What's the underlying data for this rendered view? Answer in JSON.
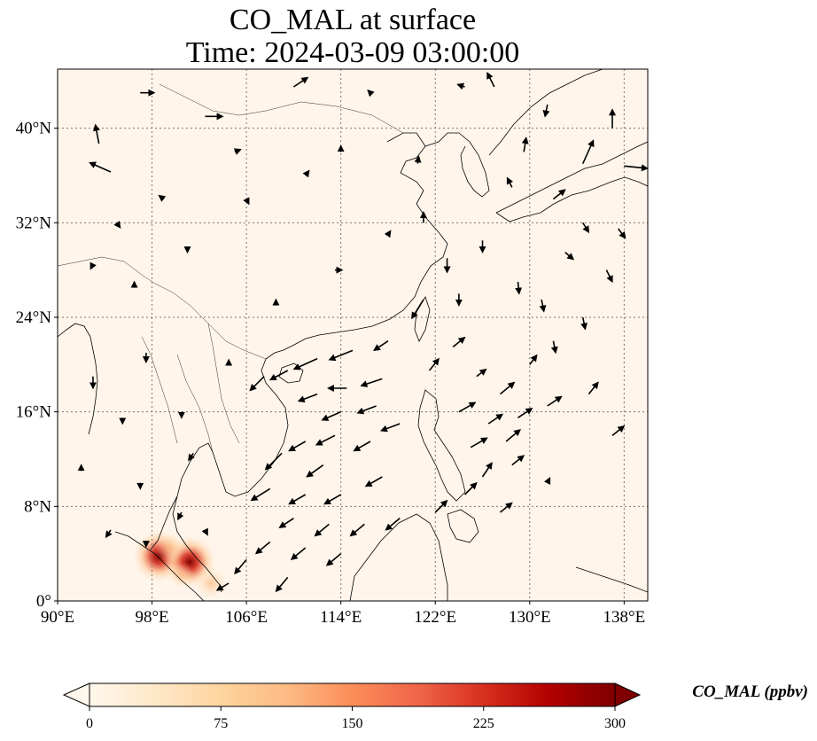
{
  "map": {
    "title_line1": "CO_MAL at surface",
    "title_line2": "Time: 2024-03-09 03:00:00",
    "lon_range": [
      90,
      140
    ],
    "lat_range": [
      0,
      45
    ],
    "lon_ticks": [
      {
        "value": 90,
        "label": "90°E"
      },
      {
        "value": 98,
        "label": "98°E"
      },
      {
        "value": 106,
        "label": "106°E"
      },
      {
        "value": 114,
        "label": "114°E"
      },
      {
        "value": 122,
        "label": "122°E"
      },
      {
        "value": 130,
        "label": "130°E"
      },
      {
        "value": 138,
        "label": "138°E"
      }
    ],
    "lat_ticks": [
      {
        "value": 0,
        "label": "0°"
      },
      {
        "value": 8,
        "label": "8°N"
      },
      {
        "value": 16,
        "label": "16°N"
      },
      {
        "value": 24,
        "label": "24°N"
      },
      {
        "value": 32,
        "label": "32°N"
      },
      {
        "value": 40,
        "label": "40°N"
      }
    ],
    "gridlines": true,
    "background_color": "#fff5eb",
    "hotspots": [
      {
        "lon": 98.6,
        "lat": 3.8,
        "value": 300
      },
      {
        "lon": 101.2,
        "lat": 3.3,
        "value": 300
      },
      {
        "lon": 99.5,
        "lat": 4.5,
        "value": 120
      },
      {
        "lon": 103.0,
        "lat": 1.5,
        "value": 140
      },
      {
        "lon": 100.5,
        "lat": 2.2,
        "value": 80
      }
    ]
  },
  "colorbar": {
    "label": "CO_MAL (ppbv)",
    "min": 0,
    "max": 300,
    "extend": "both",
    "colormap": "OrRd",
    "colors": [
      "#fff7ec",
      "#fee8c8",
      "#fdd49e",
      "#fdbb84",
      "#fc8d59",
      "#ef6548",
      "#d7301f",
      "#b30000",
      "#7f0000"
    ],
    "ticks": [
      {
        "value": 0,
        "label": "0"
      },
      {
        "value": 75,
        "label": "75"
      },
      {
        "value": 150,
        "label": "150"
      },
      {
        "value": 225,
        "label": "225"
      },
      {
        "value": 300,
        "label": "300"
      }
    ]
  },
  "wind_vectors": [
    {
      "lon": 93.5,
      "lat": 38.7,
      "u": -0.3,
      "v": 1.6
    },
    {
      "lon": 94.5,
      "lat": 36.3,
      "u": -1.8,
      "v": 0.8
    },
    {
      "lon": 97.0,
      "lat": 43.0,
      "u": 1.2,
      "v": 0.0
    },
    {
      "lon": 102.5,
      "lat": 41.0,
      "u": 1.5,
      "v": 0.0
    },
    {
      "lon": 105.0,
      "lat": 38.0,
      "u": 0.5,
      "v": 0.2
    },
    {
      "lon": 110.0,
      "lat": 43.5,
      "u": 1.2,
      "v": 0.8
    },
    {
      "lon": 116.5,
      "lat": 43.0,
      "u": -0.2,
      "v": 0.2
    },
    {
      "lon": 120.5,
      "lat": 37.0,
      "u": 0.1,
      "v": 0.6
    },
    {
      "lon": 124.5,
      "lat": 43.5,
      "u": -0.6,
      "v": 0.2
    },
    {
      "lon": 127.0,
      "lat": 43.5,
      "u": -0.6,
      "v": 1.2
    },
    {
      "lon": 131.5,
      "lat": 42.0,
      "u": -0.2,
      "v": -1.0
    },
    {
      "lon": 137.0,
      "lat": 40.0,
      "u": 0.0,
      "v": 1.6
    },
    {
      "lon": 134.5,
      "lat": 37.0,
      "u": 0.9,
      "v": 2.0
    },
    {
      "lon": 138.0,
      "lat": 36.8,
      "u": 2.0,
      "v": -0.2
    },
    {
      "lon": 129.5,
      "lat": 38.0,
      "u": 0.2,
      "v": 1.2
    },
    {
      "lon": 128.5,
      "lat": 35.0,
      "u": -0.4,
      "v": 0.8
    },
    {
      "lon": 132.0,
      "lat": 34.0,
      "u": 1.0,
      "v": 0.8
    },
    {
      "lon": 134.5,
      "lat": 32.0,
      "u": 0.5,
      "v": -0.8
    },
    {
      "lon": 137.5,
      "lat": 31.5,
      "u": 0.6,
      "v": -0.8
    },
    {
      "lon": 133.0,
      "lat": 29.5,
      "u": 0.7,
      "v": -0.6
    },
    {
      "lon": 136.5,
      "lat": 28.0,
      "u": 0.5,
      "v": -1.0
    },
    {
      "lon": 126.0,
      "lat": 30.5,
      "u": 0.0,
      "v": -1.0
    },
    {
      "lon": 129.0,
      "lat": 27.0,
      "u": 0.1,
      "v": -1.0
    },
    {
      "lon": 131.0,
      "lat": 25.5,
      "u": 0.2,
      "v": -1.0
    },
    {
      "lon": 134.5,
      "lat": 24.0,
      "u": 0.2,
      "v": -1.0
    },
    {
      "lon": 132.0,
      "lat": 22.0,
      "u": 0.2,
      "v": -1.0
    },
    {
      "lon": 118.0,
      "lat": 31.0,
      "u": 0.2,
      "v": 0.3
    },
    {
      "lon": 113.5,
      "lat": 28.0,
      "u": 0.6,
      "v": 0.0
    },
    {
      "lon": 108.5,
      "lat": 25.0,
      "u": 0.0,
      "v": 0.5
    },
    {
      "lon": 101.0,
      "lat": 30.0,
      "u": 0.0,
      "v": -0.5
    },
    {
      "lon": 96.5,
      "lat": 26.5,
      "u": 0.0,
      "v": 0.5
    },
    {
      "lon": 93.0,
      "lat": 28.5,
      "u": -0.2,
      "v": -0.4
    },
    {
      "lon": 95.0,
      "lat": 32.0,
      "u": 0.3,
      "v": -0.4
    },
    {
      "lon": 99.0,
      "lat": 34.0,
      "u": -0.4,
      "v": 0.3
    },
    {
      "lon": 106.0,
      "lat": 34.0,
      "u": 0.2,
      "v": -0.4
    },
    {
      "lon": 111.0,
      "lat": 36.0,
      "u": 0.3,
      "v": 0.4
    },
    {
      "lon": 114.0,
      "lat": 38.0,
      "u": 0.0,
      "v": 0.5
    },
    {
      "lon": 121.0,
      "lat": 32.0,
      "u": 0.0,
      "v": 0.9
    },
    {
      "lon": 123.0,
      "lat": 29.0,
      "u": 0.0,
      "v": -1.2
    },
    {
      "lon": 124.0,
      "lat": 26.0,
      "u": 0.0,
      "v": -1.0
    },
    {
      "lon": 121.0,
      "lat": 25.5,
      "u": -1.0,
      "v": -1.6
    },
    {
      "lon": 118.0,
      "lat": 22.0,
      "u": -1.2,
      "v": -0.8
    },
    {
      "lon": 115.0,
      "lat": 21.2,
      "u": -2.0,
      "v": -0.8
    },
    {
      "lon": 112.0,
      "lat": 20.5,
      "u": -2.0,
      "v": -0.9
    },
    {
      "lon": 109.5,
      "lat": 19.5,
      "u": -1.5,
      "v": -0.8
    },
    {
      "lon": 107.5,
      "lat": 19.0,
      "u": -1.2,
      "v": -1.2
    },
    {
      "lon": 117.5,
      "lat": 18.8,
      "u": -1.8,
      "v": -0.6
    },
    {
      "lon": 114.5,
      "lat": 18.0,
      "u": -1.6,
      "v": 0.0
    },
    {
      "lon": 112.0,
      "lat": 17.5,
      "u": -1.6,
      "v": -0.6
    },
    {
      "lon": 117.0,
      "lat": 16.5,
      "u": -1.6,
      "v": -0.6
    },
    {
      "lon": 114.0,
      "lat": 16.0,
      "u": -1.6,
      "v": -0.7
    },
    {
      "lon": 119.0,
      "lat": 15.0,
      "u": -1.6,
      "v": -0.6
    },
    {
      "lon": 113.5,
      "lat": 14.0,
      "u": -1.6,
      "v": -0.8
    },
    {
      "lon": 111.0,
      "lat": 13.5,
      "u": -1.4,
      "v": -0.8
    },
    {
      "lon": 116.5,
      "lat": 13.5,
      "u": -1.4,
      "v": -0.8
    },
    {
      "lon": 109.0,
      "lat": 12.5,
      "u": -1.4,
      "v": -1.4
    },
    {
      "lon": 112.5,
      "lat": 11.5,
      "u": -1.4,
      "v": -1.0
    },
    {
      "lon": 108.0,
      "lat": 9.5,
      "u": -1.6,
      "v": -1.0
    },
    {
      "lon": 111.0,
      "lat": 9.0,
      "u": -1.4,
      "v": -0.8
    },
    {
      "lon": 114.0,
      "lat": 9.0,
      "u": -1.4,
      "v": -0.8
    },
    {
      "lon": 117.5,
      "lat": 10.5,
      "u": -1.4,
      "v": -0.8
    },
    {
      "lon": 110.0,
      "lat": 7.0,
      "u": -1.2,
      "v": -0.8
    },
    {
      "lon": 113.0,
      "lat": 6.5,
      "u": -1.2,
      "v": -1.0
    },
    {
      "lon": 116.0,
      "lat": 6.5,
      "u": -1.2,
      "v": -1.0
    },
    {
      "lon": 119.0,
      "lat": 7.0,
      "u": -1.2,
      "v": -1.0
    },
    {
      "lon": 108.0,
      "lat": 5.0,
      "u": -1.2,
      "v": -1.0
    },
    {
      "lon": 111.0,
      "lat": 4.5,
      "u": -1.2,
      "v": -1.0
    },
    {
      "lon": 114.0,
      "lat": 4.0,
      "u": -1.2,
      "v": -1.0
    },
    {
      "lon": 106.0,
      "lat": 3.5,
      "u": -1.0,
      "v": -1.2
    },
    {
      "lon": 109.5,
      "lat": 2.0,
      "u": -1.0,
      "v": -1.2
    },
    {
      "lon": 104.5,
      "lat": 1.5,
      "u": -1.0,
      "v": -0.6
    },
    {
      "lon": 121.5,
      "lat": 19.5,
      "u": 0.8,
      "v": 1.0
    },
    {
      "lon": 123.5,
      "lat": 21.5,
      "u": 1.0,
      "v": 0.8
    },
    {
      "lon": 125.5,
      "lat": 19.0,
      "u": 0.8,
      "v": 0.6
    },
    {
      "lon": 124.0,
      "lat": 16.0,
      "u": 1.4,
      "v": 0.8
    },
    {
      "lon": 127.5,
      "lat": 17.5,
      "u": 1.2,
      "v": 1.0
    },
    {
      "lon": 126.5,
      "lat": 15.0,
      "u": 1.2,
      "v": 0.8
    },
    {
      "lon": 129.0,
      "lat": 15.5,
      "u": 1.2,
      "v": 0.8
    },
    {
      "lon": 131.5,
      "lat": 16.5,
      "u": 1.2,
      "v": 0.8
    },
    {
      "lon": 128.0,
      "lat": 13.5,
      "u": 1.2,
      "v": 1.0
    },
    {
      "lon": 125.0,
      "lat": 13.0,
      "u": 1.4,
      "v": 0.8
    },
    {
      "lon": 126.0,
      "lat": 10.5,
      "u": 0.8,
      "v": 1.2
    },
    {
      "lon": 128.5,
      "lat": 11.5,
      "u": 1.0,
      "v": 0.8
    },
    {
      "lon": 124.5,
      "lat": 9.0,
      "u": 1.0,
      "v": 1.0
    },
    {
      "lon": 127.5,
      "lat": 7.5,
      "u": 1.0,
      "v": 0.8
    },
    {
      "lon": 122.0,
      "lat": 7.5,
      "u": 1.0,
      "v": 1.0
    },
    {
      "lon": 135.0,
      "lat": 17.5,
      "u": 0.8,
      "v": 1.0
    },
    {
      "lon": 137.0,
      "lat": 14.0,
      "u": 1.0,
      "v": 0.8
    },
    {
      "lon": 130.0,
      "lat": 20.0,
      "u": 0.6,
      "v": 0.8
    },
    {
      "lon": 131.5,
      "lat": 10.0,
      "u": 0.2,
      "v": 0.4
    },
    {
      "lon": 93.0,
      "lat": 19.0,
      "u": 0.0,
      "v": -1.0
    },
    {
      "lon": 95.5,
      "lat": 15.5,
      "u": 0.0,
      "v": -0.5
    },
    {
      "lon": 97.5,
      "lat": 21.0,
      "u": 0.0,
      "v": -0.8
    },
    {
      "lon": 100.5,
      "lat": 16.0,
      "u": 0.0,
      "v": -0.5
    },
    {
      "lon": 101.5,
      "lat": 12.5,
      "u": -0.4,
      "v": -0.6
    },
    {
      "lon": 97.0,
      "lat": 10.0,
      "u": 0.0,
      "v": -0.5
    },
    {
      "lon": 100.5,
      "lat": 7.5,
      "u": -0.3,
      "v": -0.6
    },
    {
      "lon": 94.5,
      "lat": 6.0,
      "u": -0.4,
      "v": -0.6
    },
    {
      "lon": 97.5,
      "lat": 5.0,
      "u": 0.0,
      "v": -0.4
    },
    {
      "lon": 102.5,
      "lat": 6.0,
      "u": 0.2,
      "v": -0.4
    },
    {
      "lon": 92.0,
      "lat": 11.0,
      "u": 0.0,
      "v": 0.5
    },
    {
      "lon": 104.5,
      "lat": 20.0,
      "u": 0.0,
      "v": 0.4
    }
  ]
}
